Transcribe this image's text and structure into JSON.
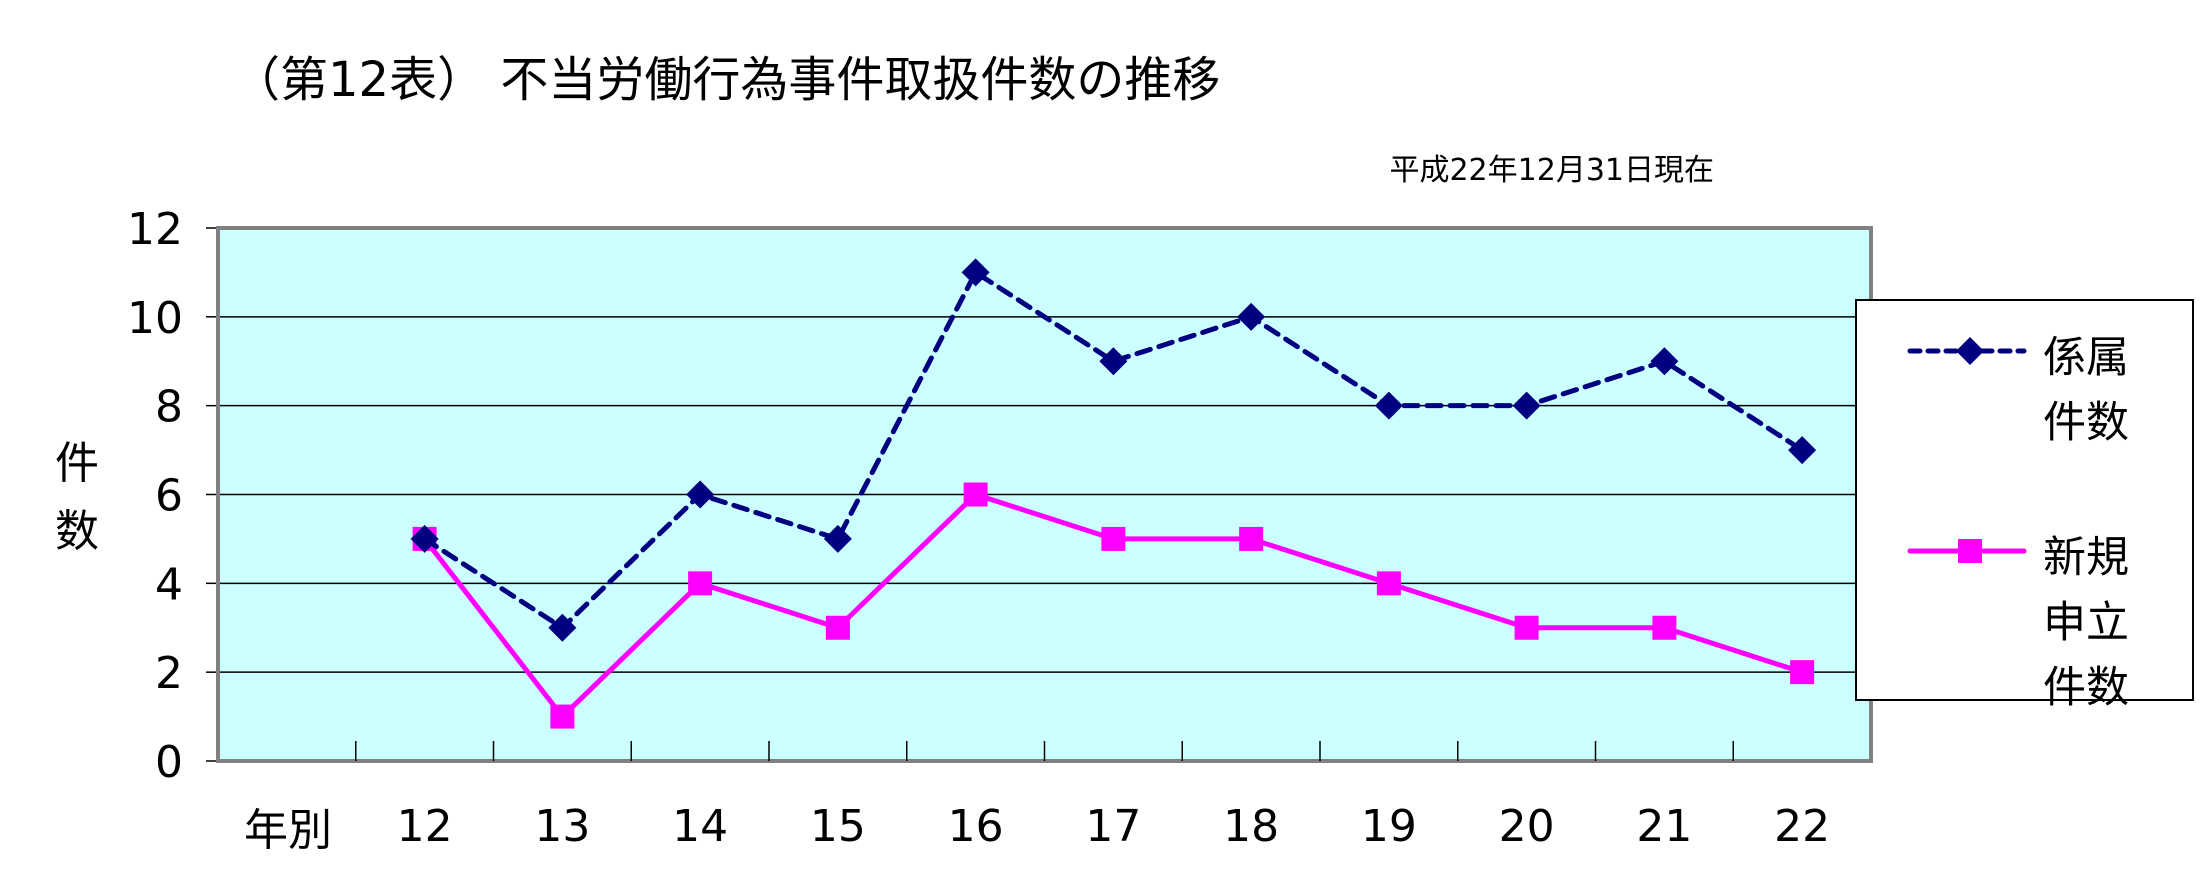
{
  "chart_data": {
    "type": "line",
    "title": "（第12表） 不当労働行為事件取扱件数の推移",
    "subtitle": "平成22年12月31日現在",
    "ylabel": "件数",
    "xlabel": "年別",
    "categories": [
      "12",
      "13",
      "14",
      "15",
      "16",
      "17",
      "18",
      "19",
      "20",
      "21",
      "22"
    ],
    "ylim": [
      0,
      12
    ],
    "yticks": [
      0,
      2,
      4,
      6,
      8,
      10,
      12
    ],
    "grid": true,
    "legend_placement": "right",
    "background_color": "#ccffff",
    "series": [
      {
        "name": "係属件数",
        "legend_lines": [
          "係属",
          "件数"
        ],
        "color": "#000080",
        "style": "dashed",
        "marker": "diamond",
        "values": [
          5,
          3,
          6,
          5,
          11,
          9,
          10,
          8,
          8,
          9,
          7
        ]
      },
      {
        "name": "新規申立件数",
        "legend_lines": [
          "新規",
          "申立",
          "件数"
        ],
        "color": "#ff00ff",
        "style": "solid",
        "marker": "square",
        "values": [
          5,
          1,
          4,
          3,
          6,
          5,
          5,
          4,
          3,
          3,
          2
        ]
      }
    ]
  }
}
